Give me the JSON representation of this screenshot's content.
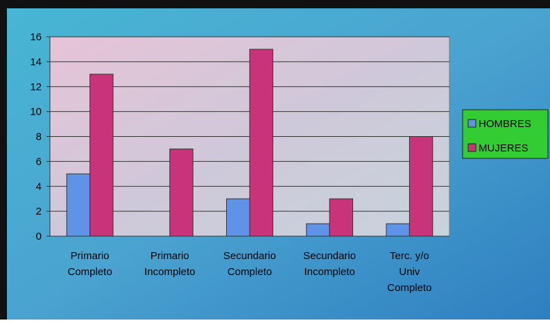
{
  "chart_data": {
    "type": "bar",
    "categories": [
      "Primario\nCompleto",
      "Primario\nIncompleto",
      "Secundario\nCompleto",
      "Secundario\nIncompleto",
      "Terc. y/o\nUniv\nCompleto"
    ],
    "series": [
      {
        "name": "HOMBRES",
        "color": "#5f93e8",
        "values": [
          5,
          0,
          3,
          1,
          1
        ]
      },
      {
        "name": "MUJERES",
        "color": "#c8337a",
        "values": [
          13,
          7,
          15,
          3,
          8
        ]
      }
    ],
    "ylim": [
      0,
      16
    ],
    "yticks": [
      0,
      2,
      4,
      6,
      8,
      10,
      12,
      14,
      16
    ],
    "grid": true,
    "legend": "right"
  }
}
